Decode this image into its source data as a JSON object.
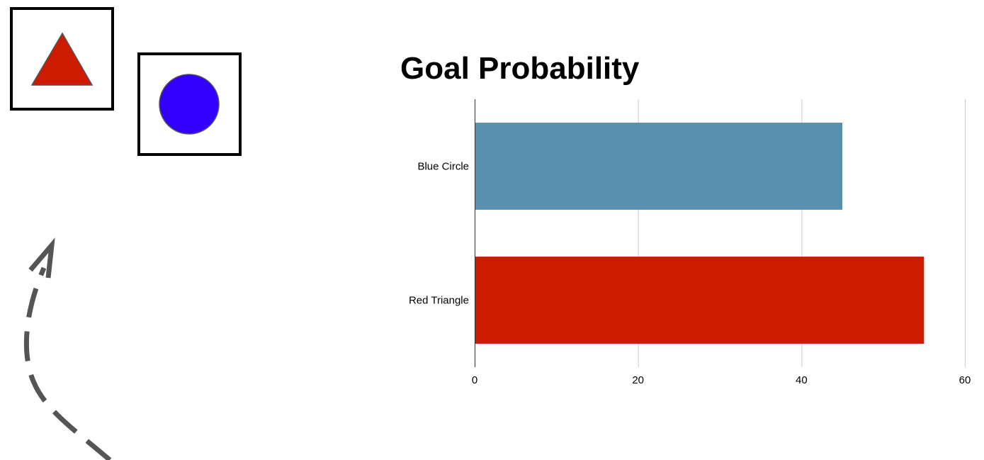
{
  "colors": {
    "triangle": "#cc1b00",
    "circle": "#3300ff",
    "bar_blue": "#5890ae",
    "bar_red": "#cc1b00",
    "gridline": "#cccccc",
    "arrow": "#555555"
  },
  "icons": [
    "red-triangle-icon",
    "blue-circle-icon",
    "dashed-arrow-icon"
  ],
  "chart_data": {
    "type": "bar",
    "orientation": "horizontal",
    "title": "Goal Probability",
    "categories": [
      "Blue Circle",
      "Red Triangle"
    ],
    "values": [
      45,
      55
    ],
    "bar_colors": [
      "#5890ae",
      "#cc1b00"
    ],
    "xlim": [
      0,
      60
    ],
    "xticks": [
      "0",
      "20",
      "40",
      "60"
    ],
    "xlabel": "",
    "ylabel": "",
    "grid": true,
    "legend": "none"
  }
}
